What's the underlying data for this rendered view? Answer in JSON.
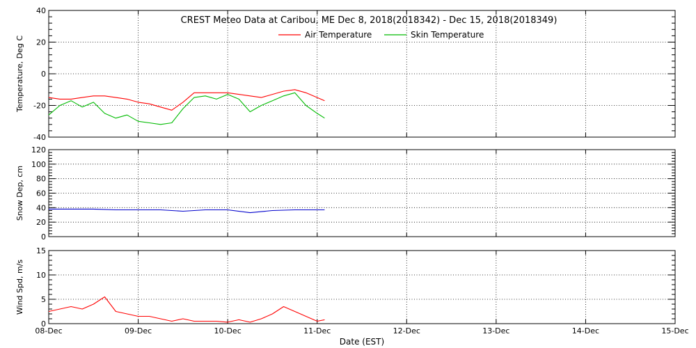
{
  "chart_data": [
    {
      "type": "line",
      "title": "CREST Meteo Data at Caribou, ME   Dec  8, 2018(2018342) - Dec 15, 2018(2018349)",
      "xlabel": "",
      "ylabel": "Temperature, Deg C",
      "xlim": [
        "2018-12-08",
        "2018-12-15"
      ],
      "ylim": [
        -40,
        40
      ],
      "y_ticks": [
        -40,
        -20,
        0,
        20,
        40
      ],
      "grid": true,
      "legend": {
        "placement": "top-center"
      },
      "series": [
        {
          "name": "Air Temperature",
          "color": "#ff0000",
          "x": [
            "2018-12-08 00:00",
            "2018-12-08 03:00",
            "2018-12-08 06:00",
            "2018-12-08 09:00",
            "2018-12-08 12:00",
            "2018-12-08 15:00",
            "2018-12-08 18:00",
            "2018-12-08 21:00",
            "2018-12-09 00:00",
            "2018-12-09 03:00",
            "2018-12-09 06:00",
            "2018-12-09 09:00",
            "2018-12-09 12:00",
            "2018-12-09 15:00",
            "2018-12-09 18:00",
            "2018-12-09 21:00",
            "2018-12-10 00:00",
            "2018-12-10 03:00",
            "2018-12-10 06:00",
            "2018-12-10 09:00",
            "2018-12-10 12:00",
            "2018-12-10 15:00",
            "2018-12-10 18:00",
            "2018-12-10 21:00",
            "2018-12-11 00:00",
            "2018-12-11 02:00"
          ],
          "values": [
            -15,
            -16,
            -16,
            -15,
            -14,
            -14,
            -15,
            -16,
            -18,
            -19,
            -21,
            -23,
            -18,
            -12,
            -12,
            -12,
            -12,
            -13,
            -14,
            -15,
            -13,
            -11,
            -10,
            -12,
            -15,
            -17
          ]
        },
        {
          "name": "Skin Temperature",
          "color": "#00bb00",
          "x": [
            "2018-12-08 00:00",
            "2018-12-08 03:00",
            "2018-12-08 06:00",
            "2018-12-08 09:00",
            "2018-12-08 12:00",
            "2018-12-08 15:00",
            "2018-12-08 18:00",
            "2018-12-08 21:00",
            "2018-12-09 00:00",
            "2018-12-09 03:00",
            "2018-12-09 06:00",
            "2018-12-09 09:00",
            "2018-12-09 12:00",
            "2018-12-09 15:00",
            "2018-12-09 18:00",
            "2018-12-09 21:00",
            "2018-12-10 00:00",
            "2018-12-10 03:00",
            "2018-12-10 06:00",
            "2018-12-10 09:00",
            "2018-12-10 12:00",
            "2018-12-10 15:00",
            "2018-12-10 18:00",
            "2018-12-10 21:00",
            "2018-12-11 00:00",
            "2018-12-11 02:00"
          ],
          "values": [
            -26,
            -20,
            -17,
            -21,
            -18,
            -25,
            -28,
            -26,
            -30,
            -31,
            -32,
            -31,
            -22,
            -15,
            -14,
            -16,
            -13,
            -16,
            -24,
            -20,
            -17,
            -14,
            -12,
            -20,
            -25,
            -28
          ]
        }
      ]
    },
    {
      "type": "line",
      "title": "",
      "xlabel": "",
      "ylabel": "Snow Dep, cm",
      "xlim": [
        "2018-12-08",
        "2018-12-15"
      ],
      "ylim": [
        0,
        120
      ],
      "y_ticks": [
        0,
        20,
        40,
        60,
        80,
        100,
        120
      ],
      "grid": true,
      "series": [
        {
          "color": "#0000cc",
          "x": [
            "2018-12-08 00:00",
            "2018-12-08 06:00",
            "2018-12-08 12:00",
            "2018-12-08 18:00",
            "2018-12-09 00:00",
            "2018-12-09 06:00",
            "2018-12-09 12:00",
            "2018-12-09 18:00",
            "2018-12-10 00:00",
            "2018-12-10 06:00",
            "2018-12-10 12:00",
            "2018-12-10 18:00",
            "2018-12-11 00:00",
            "2018-12-11 02:00"
          ],
          "values": [
            38,
            38,
            38,
            37,
            37,
            37,
            35,
            37,
            37,
            33,
            36,
            37,
            37,
            37
          ]
        }
      ]
    },
    {
      "type": "line",
      "title": "",
      "xlabel": "Date (EST)",
      "ylabel": "Wind Spd, m/s",
      "xlim": [
        "2018-12-08",
        "2018-12-15"
      ],
      "ylim": [
        0,
        15
      ],
      "y_ticks": [
        0,
        5,
        10,
        15
      ],
      "x_ticks": [
        "08-Dec",
        "09-Dec",
        "10-Dec",
        "11-Dec",
        "12-Dec",
        "13-Dec",
        "14-Dec",
        "15-Dec"
      ],
      "grid": true,
      "series": [
        {
          "color": "#ff0000",
          "x": [
            "2018-12-08 00:00",
            "2018-12-08 03:00",
            "2018-12-08 06:00",
            "2018-12-08 09:00",
            "2018-12-08 12:00",
            "2018-12-08 15:00",
            "2018-12-08 18:00",
            "2018-12-08 21:00",
            "2018-12-09 00:00",
            "2018-12-09 03:00",
            "2018-12-09 06:00",
            "2018-12-09 09:00",
            "2018-12-09 12:00",
            "2018-12-09 15:00",
            "2018-12-09 18:00",
            "2018-12-09 21:00",
            "2018-12-10 00:00",
            "2018-12-10 03:00",
            "2018-12-10 06:00",
            "2018-12-10 09:00",
            "2018-12-10 12:00",
            "2018-12-10 15:00",
            "2018-12-10 18:00",
            "2018-12-10 21:00",
            "2018-12-11 00:00",
            "2018-12-11 02:00"
          ],
          "values": [
            2.5,
            3,
            3.5,
            3,
            4,
            5.5,
            2.5,
            2,
            1.5,
            1.5,
            1,
            0.5,
            1,
            0.5,
            0.5,
            0.5,
            0.3,
            0.8,
            0.3,
            1,
            2,
            3.5,
            2.5,
            1.5,
            0.5,
            0.8
          ]
        }
      ]
    }
  ]
}
